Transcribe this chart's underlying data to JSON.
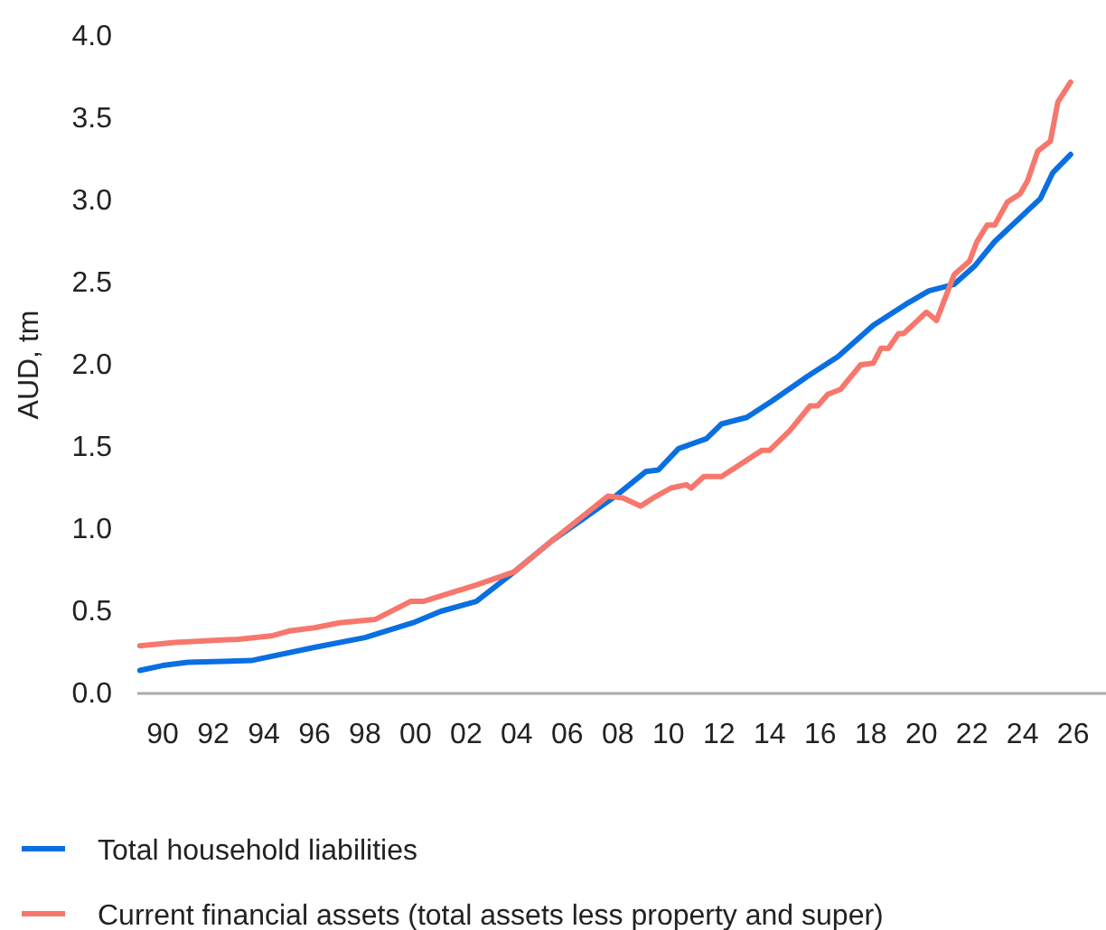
{
  "chart_data": {
    "type": "line",
    "ylabel": "AUD, tm",
    "xlim": [
      1989,
      2027.3
    ],
    "ylim": [
      0,
      4
    ],
    "xticks": [
      {
        "value": 1990,
        "label": "90"
      },
      {
        "value": 1992,
        "label": "92"
      },
      {
        "value": 1994,
        "label": "94"
      },
      {
        "value": 1996,
        "label": "96"
      },
      {
        "value": 1998,
        "label": "98"
      },
      {
        "value": 2000,
        "label": "00"
      },
      {
        "value": 2002,
        "label": "02"
      },
      {
        "value": 2004,
        "label": "04"
      },
      {
        "value": 2006,
        "label": "06"
      },
      {
        "value": 2008,
        "label": "08"
      },
      {
        "value": 2010,
        "label": "10"
      },
      {
        "value": 2012,
        "label": "12"
      },
      {
        "value": 2014,
        "label": "14"
      },
      {
        "value": 2016,
        "label": "16"
      },
      {
        "value": 2018,
        "label": "18"
      },
      {
        "value": 2020,
        "label": "20"
      },
      {
        "value": 2022,
        "label": "22"
      },
      {
        "value": 2024,
        "label": "24"
      },
      {
        "value": 2026,
        "label": "26"
      }
    ],
    "yticks": [
      {
        "value": 0,
        "label": "0.0"
      },
      {
        "value": 0.5,
        "label": "0.5"
      },
      {
        "value": 1,
        "label": "1.0"
      },
      {
        "value": 1.5,
        "label": "1.5"
      },
      {
        "value": 2,
        "label": "2.0"
      },
      {
        "value": 2.5,
        "label": "2.5"
      },
      {
        "value": 3,
        "label": "3.0"
      },
      {
        "value": 3.5,
        "label": "3.5"
      },
      {
        "value": 4,
        "label": "4.0"
      }
    ],
    "grid": false,
    "legend": "bottom",
    "marker": "none",
    "line_style": "solid",
    "series": [
      {
        "name": "Total household liabilities",
        "color": "#0a6fe0",
        "x": [
          1989.1,
          1990,
          1991,
          1993.5,
          1996,
          1998,
          1999.9,
          2001,
          2002.4,
          2003.9,
          2005.4,
          2007.9,
          2009.1,
          2009.6,
          2010.4,
          2011.5,
          2012.1,
          2013.1,
          2014.1,
          2015.5,
          2016.7,
          2018.1,
          2019.4,
          2020.3,
          2021.3,
          2022.1,
          2022.9,
          2024.7,
          2025.2,
          2025.9
        ],
        "values": [
          0.14,
          0.17,
          0.19,
          0.2,
          0.28,
          0.34,
          0.43,
          0.5,
          0.56,
          0.74,
          0.93,
          1.2,
          1.35,
          1.36,
          1.49,
          1.55,
          1.64,
          1.68,
          1.78,
          1.93,
          2.05,
          2.24,
          2.37,
          2.45,
          2.49,
          2.6,
          2.75,
          3.01,
          3.17,
          3.28
        ]
      },
      {
        "name": "Current financial assets (total assets less property and super)",
        "color": "#f7776d",
        "x": [
          1989.1,
          1990.5,
          1993,
          1994.3,
          1995,
          1996,
          1997,
          1998.4,
          1999.8,
          2000.3,
          2002.4,
          2003.9,
          2005.4,
          2007.6,
          2008.2,
          2008.9,
          2009.4,
          2010.1,
          2010.7,
          2010.9,
          2011.4,
          2012.1,
          2012.9,
          2013.7,
          2014,
          2014.8,
          2015.6,
          2015.9,
          2016.3,
          2016.8,
          2017.6,
          2018.1,
          2018.4,
          2018.7,
          2019.1,
          2019.3,
          2020.2,
          2020.6,
          2021.3,
          2021.9,
          2022.2,
          2022.6,
          2022.9,
          2023.4,
          2023.9,
          2024.2,
          2024.6,
          2025.1,
          2025.4,
          2025.9
        ],
        "values": [
          0.29,
          0.31,
          0.33,
          0.35,
          0.38,
          0.4,
          0.43,
          0.45,
          0.56,
          0.56,
          0.66,
          0.74,
          0.93,
          1.2,
          1.19,
          1.14,
          1.19,
          1.25,
          1.27,
          1.25,
          1.32,
          1.32,
          1.4,
          1.48,
          1.48,
          1.6,
          1.75,
          1.75,
          1.82,
          1.85,
          2.0,
          2.01,
          2.1,
          2.1,
          2.19,
          2.19,
          2.32,
          2.27,
          2.55,
          2.63,
          2.75,
          2.85,
          2.85,
          2.99,
          3.04,
          3.12,
          3.3,
          3.36,
          3.6,
          3.72
        ]
      }
    ]
  }
}
